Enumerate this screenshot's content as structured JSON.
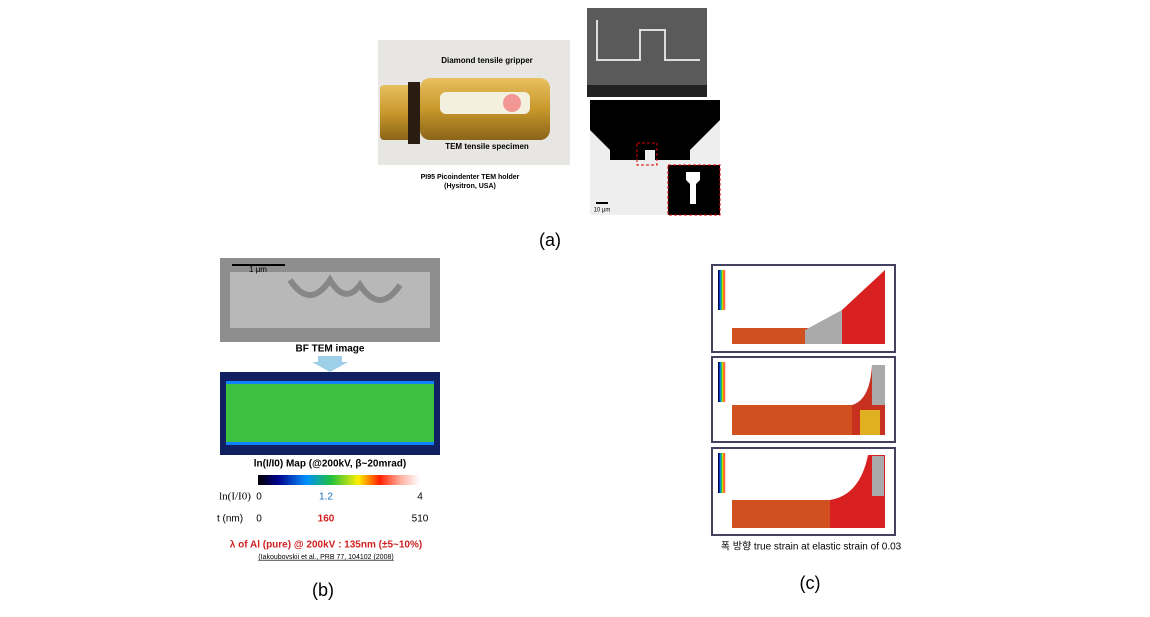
{
  "panel_a": {
    "gripper_label": "Diamond tensile gripper",
    "specimen_label": "TEM tensile specimen",
    "holder_caption_1": "PI95 Picoindenter TEM holder",
    "holder_caption_2": "(Hysitron, USA)",
    "scale_label": "10 μm",
    "caption": "(a)"
  },
  "panel_b": {
    "scale_label": "1 μm",
    "image_label": "BF TEM image",
    "map_title": "ln(I/I0) Map (@200kV, β~20mrad)",
    "row1": {
      "label": "ln(I/I0)",
      "ticks": [
        "0",
        "1.2",
        "4"
      ]
    },
    "row2": {
      "label": "t (nm)",
      "ticks": [
        "0",
        "160",
        "510"
      ]
    },
    "note": "λ of Al (pure) @ 200kV : 135nm (±5~10%)",
    "citation": "(Iakoubovskii et al., PRB 77, 104102 (2008)",
    "caption": "(b)"
  },
  "panel_c": {
    "figure_caption": "폭 방향 true strain at elastic strain of 0.03",
    "caption": "(c)"
  }
}
